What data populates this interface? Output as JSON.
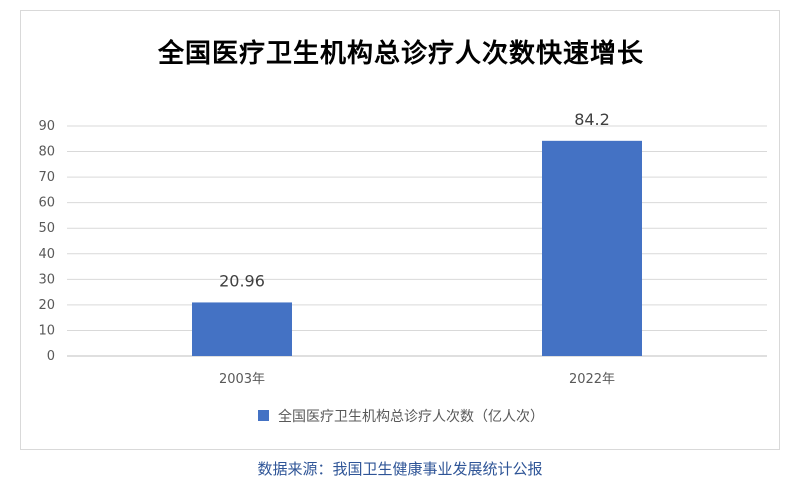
{
  "chart_data": {
    "type": "bar",
    "title": "全国医疗卫生机构总诊疗人次数快速增长",
    "categories": [
      "2003年",
      "2022年"
    ],
    "series": [
      {
        "name": "全国医疗卫生机构总诊疗人次数（亿人次）",
        "values": [
          20.96,
          84.2
        ],
        "data_labels": [
          "20.96",
          "84.2"
        ],
        "color": "#4472c4"
      }
    ],
    "ylim": [
      0,
      90
    ],
    "yticks": [
      0,
      10,
      20,
      30,
      40,
      50,
      60,
      70,
      80,
      90
    ],
    "grid": true,
    "legend": "bottom"
  },
  "source": "数据来源：我国卫生健康事业发展统计公报"
}
